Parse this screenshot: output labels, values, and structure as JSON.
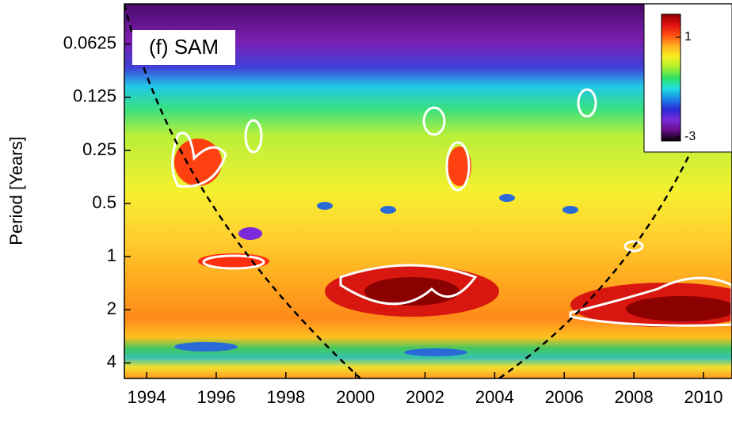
{
  "chart_data": {
    "type": "wavelet",
    "title": "(f) SAM",
    "y_label": "Period [Years]",
    "xlim": [
      1993.36,
      2010.82
    ],
    "xticks": [
      1994,
      1996,
      1998,
      2000,
      2002,
      2004,
      2006,
      2008,
      2010
    ],
    "ylim": [
      0.037,
      4.9
    ],
    "yscale": "log",
    "yticks": [
      0.0625,
      0.125,
      0.25,
      0.5,
      1,
      2,
      4
    ],
    "colorbar": {
      "lim": [
        -3.16,
        1.92
      ],
      "ticks": [
        1,
        -3
      ],
      "colormap": [
        "#000000",
        "#6a0d8a",
        "#7a2ad8",
        "#2a2ad8",
        "#1a8ae8",
        "#20e0e0",
        "#30e060",
        "#b0f030",
        "#f8f020",
        "#ffb020",
        "#ff5010",
        "#e01010",
        "#900000"
      ]
    }
  }
}
